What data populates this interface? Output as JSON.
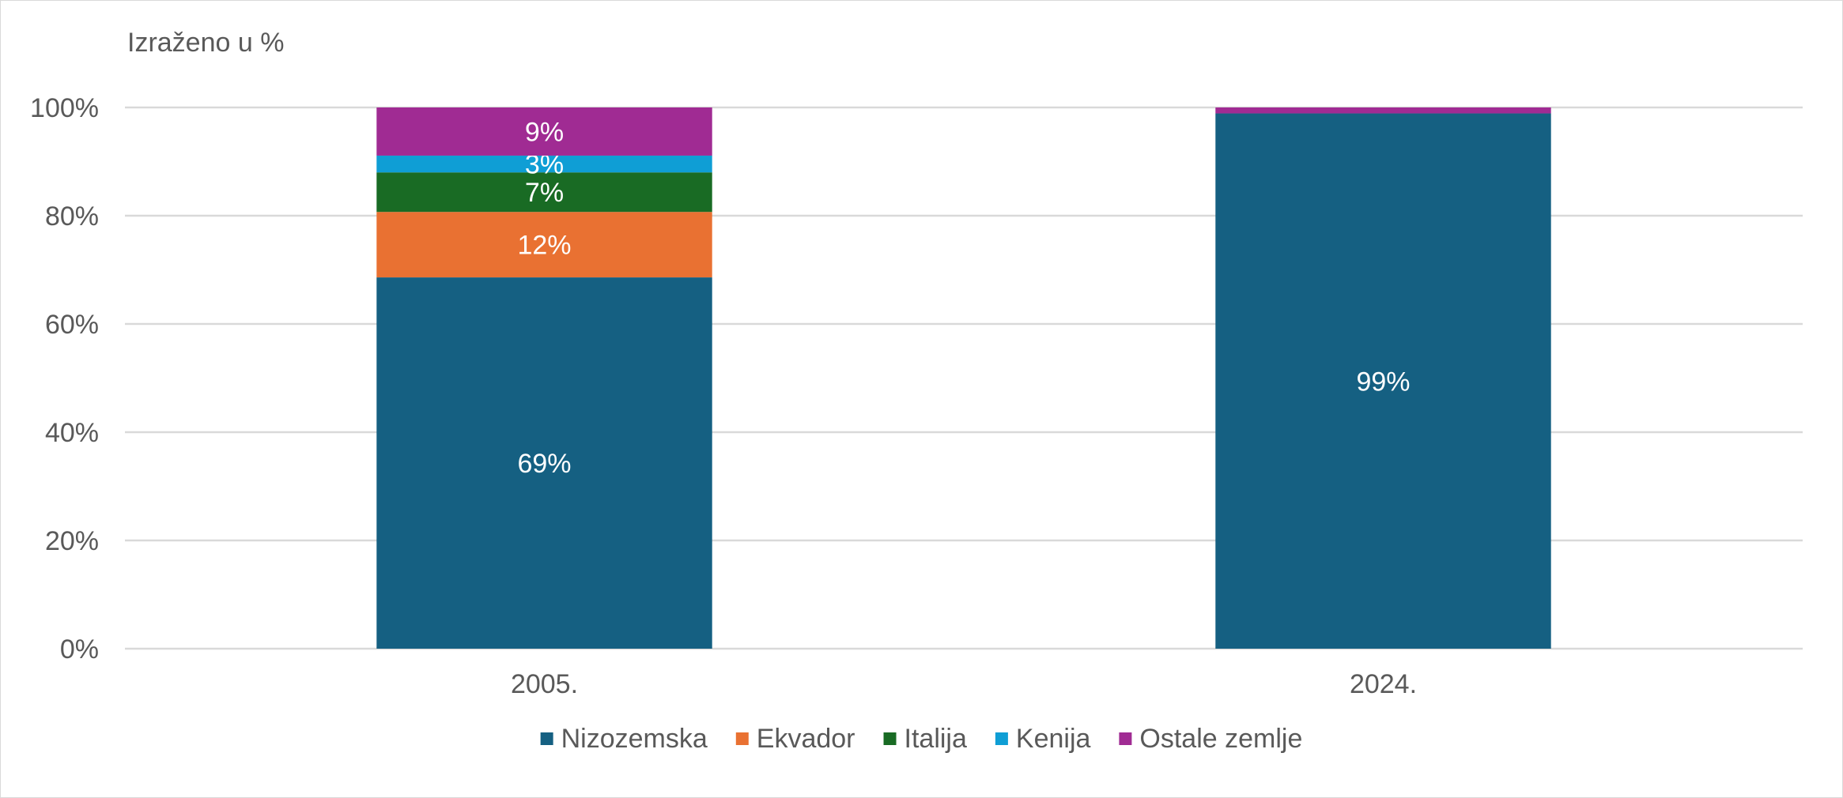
{
  "chart_data": {
    "type": "bar",
    "stacked": true,
    "unit_label": "Izraženo u %",
    "categories": [
      "2005.",
      "2024."
    ],
    "ylim": [
      0,
      100
    ],
    "yticks": [
      0,
      20,
      40,
      60,
      80,
      100
    ],
    "ytick_suffix": "%",
    "grid": true,
    "legend_position": "bottom",
    "series": [
      {
        "name": "Nizozemska",
        "color": "#156082",
        "values": [
          68.6,
          98.9
        ],
        "labels": [
          "69%",
          "99%"
        ]
      },
      {
        "name": "Ekvador",
        "color": "#e97132",
        "values": [
          12.1,
          0
        ],
        "labels": [
          "12%",
          ""
        ]
      },
      {
        "name": "Italija",
        "color": "#196b24",
        "values": [
          7.3,
          0
        ],
        "labels": [
          "7%",
          ""
        ]
      },
      {
        "name": "Kenija",
        "color": "#0f9ed5",
        "values": [
          3.1,
          0
        ],
        "labels": [
          "3%",
          ""
        ]
      },
      {
        "name": "Ostale zemlje",
        "color": "#a02b93",
        "values": [
          8.9,
          1.1
        ],
        "labels": [
          "9%",
          ""
        ]
      }
    ]
  }
}
